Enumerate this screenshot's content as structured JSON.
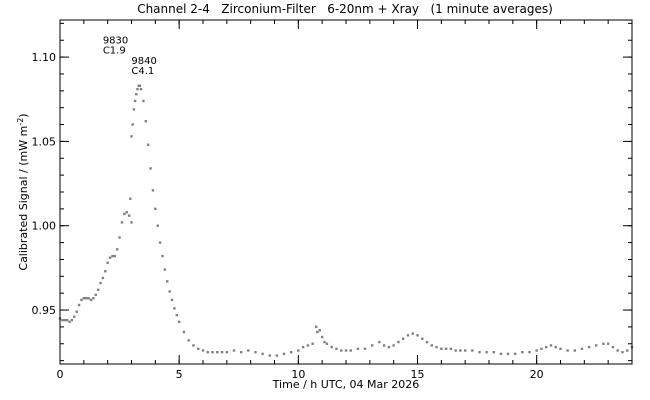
{
  "chart_data": {
    "type": "scatter",
    "title": "Channel 2-4   Zirconium-Filter   6-20nm + Xray   (1 minute averages)",
    "xlabel": "Time / h UTC, 04 Mar 2026",
    "ylabel": "Calibrated Signal / (mW m",
    "ylabel_sup": "-2",
    "ylabel_end": ")",
    "xlim": [
      0,
      24
    ],
    "ylim": [
      0.918,
      1.122
    ],
    "grid": false,
    "marker_color": "#808080",
    "x_ticks": [
      {
        "value": 0,
        "label": "0"
      },
      {
        "value": 5,
        "label": "5"
      },
      {
        "value": 10,
        "label": "10"
      },
      {
        "value": 15,
        "label": "15"
      },
      {
        "value": 20,
        "label": "20"
      }
    ],
    "x_minor_step": 1,
    "y_ticks": [
      {
        "value": 0.95,
        "label": "0.95"
      },
      {
        "value": 1.0,
        "label": "1.00"
      },
      {
        "value": 1.05,
        "label": "1.05"
      },
      {
        "value": 1.1,
        "label": "1.10"
      }
    ],
    "y_minor_step": 0.01,
    "annotations": [
      {
        "name": "flare-9830",
        "x": 2.3,
        "y": 1.108,
        "lines": [
          "9830",
          "C1.9"
        ]
      },
      {
        "name": "flare-9840",
        "x": 3.5,
        "y": 1.096,
        "lines": [
          "9840",
          "C4.1"
        ]
      }
    ],
    "series": [
      {
        "points": [
          [
            0.0,
            0.945
          ],
          [
            0.1,
            0.944
          ],
          [
            0.2,
            0.944
          ],
          [
            0.3,
            0.944
          ],
          [
            0.4,
            0.943
          ],
          [
            0.5,
            0.944
          ],
          [
            0.6,
            0.946
          ],
          [
            0.7,
            0.949
          ],
          [
            0.8,
            0.953
          ],
          [
            0.9,
            0.956
          ],
          [
            1.0,
            0.957
          ],
          [
            1.1,
            0.957
          ],
          [
            1.2,
            0.957
          ],
          [
            1.3,
            0.956
          ],
          [
            1.4,
            0.957
          ],
          [
            1.5,
            0.959
          ],
          [
            1.6,
            0.962
          ],
          [
            1.7,
            0.966
          ],
          [
            1.8,
            0.969
          ],
          [
            1.9,
            0.973
          ],
          [
            2.0,
            0.978
          ],
          [
            2.1,
            0.981
          ],
          [
            2.2,
            0.982
          ],
          [
            2.3,
            0.982
          ],
          [
            2.4,
            0.986
          ],
          [
            2.5,
            0.993
          ],
          [
            2.6,
            1.002
          ],
          [
            2.7,
            1.007
          ],
          [
            2.8,
            1.008
          ],
          [
            2.9,
            1.006
          ],
          [
            3.0,
            1.002
          ],
          [
            2.95,
            1.016
          ],
          [
            3.0,
            1.053
          ],
          [
            3.05,
            1.06
          ],
          [
            3.1,
            1.069
          ],
          [
            3.15,
            1.074
          ],
          [
            3.2,
            1.078
          ],
          [
            3.25,
            1.081
          ],
          [
            3.3,
            1.083
          ],
          [
            3.35,
            1.083
          ],
          [
            3.4,
            1.081
          ],
          [
            3.5,
            1.074
          ],
          [
            3.6,
            1.062
          ],
          [
            3.7,
            1.048
          ],
          [
            3.8,
            1.034
          ],
          [
            3.9,
            1.021
          ],
          [
            4.0,
            1.01
          ],
          [
            4.1,
            1.0
          ],
          [
            4.2,
            0.99
          ],
          [
            4.3,
            0.982
          ],
          [
            4.4,
            0.974
          ],
          [
            4.5,
            0.967
          ],
          [
            4.6,
            0.961
          ],
          [
            4.7,
            0.956
          ],
          [
            4.8,
            0.951
          ],
          [
            4.9,
            0.947
          ],
          [
            5.0,
            0.943
          ],
          [
            5.2,
            0.937
          ],
          [
            5.4,
            0.932
          ],
          [
            5.6,
            0.929
          ],
          [
            5.8,
            0.927
          ],
          [
            6.0,
            0.926
          ],
          [
            6.2,
            0.925
          ],
          [
            6.4,
            0.925
          ],
          [
            6.6,
            0.925
          ],
          [
            6.8,
            0.925
          ],
          [
            7.0,
            0.925
          ],
          [
            7.3,
            0.926
          ],
          [
            7.6,
            0.925
          ],
          [
            7.9,
            0.926
          ],
          [
            8.2,
            0.925
          ],
          [
            8.5,
            0.924
          ],
          [
            8.8,
            0.923
          ],
          [
            9.1,
            0.923
          ],
          [
            9.4,
            0.924
          ],
          [
            9.7,
            0.925
          ],
          [
            10.0,
            0.926
          ],
          [
            10.2,
            0.928
          ],
          [
            10.4,
            0.929
          ],
          [
            10.6,
            0.93
          ],
          [
            10.75,
            0.94
          ],
          [
            10.8,
            0.937
          ],
          [
            10.9,
            0.938
          ],
          [
            11.0,
            0.934
          ],
          [
            11.1,
            0.931
          ],
          [
            11.2,
            0.93
          ],
          [
            11.4,
            0.928
          ],
          [
            11.6,
            0.927
          ],
          [
            11.8,
            0.926
          ],
          [
            12.0,
            0.926
          ],
          [
            12.2,
            0.926
          ],
          [
            12.5,
            0.927
          ],
          [
            12.8,
            0.927
          ],
          [
            13.1,
            0.929
          ],
          [
            13.4,
            0.931
          ],
          [
            13.6,
            0.929
          ],
          [
            13.8,
            0.928
          ],
          [
            14.0,
            0.929
          ],
          [
            14.2,
            0.931
          ],
          [
            14.4,
            0.933
          ],
          [
            14.6,
            0.935
          ],
          [
            14.8,
            0.936
          ],
          [
            15.0,
            0.935
          ],
          [
            15.2,
            0.933
          ],
          [
            15.4,
            0.931
          ],
          [
            15.6,
            0.929
          ],
          [
            15.8,
            0.928
          ],
          [
            16.0,
            0.927
          ],
          [
            16.2,
            0.927
          ],
          [
            16.4,
            0.927
          ],
          [
            16.6,
            0.926
          ],
          [
            16.8,
            0.926
          ],
          [
            17.0,
            0.926
          ],
          [
            17.3,
            0.926
          ],
          [
            17.6,
            0.925
          ],
          [
            17.9,
            0.925
          ],
          [
            18.2,
            0.925
          ],
          [
            18.5,
            0.924
          ],
          [
            18.8,
            0.924
          ],
          [
            19.1,
            0.924
          ],
          [
            19.4,
            0.925
          ],
          [
            19.7,
            0.925
          ],
          [
            20.0,
            0.926
          ],
          [
            20.2,
            0.927
          ],
          [
            20.4,
            0.928
          ],
          [
            20.6,
            0.929
          ],
          [
            20.8,
            0.928
          ],
          [
            21.0,
            0.927
          ],
          [
            21.3,
            0.926
          ],
          [
            21.6,
            0.926
          ],
          [
            21.9,
            0.927
          ],
          [
            22.2,
            0.928
          ],
          [
            22.5,
            0.929
          ],
          [
            22.8,
            0.93
          ],
          [
            23.0,
            0.93
          ],
          [
            23.2,
            0.928
          ],
          [
            23.4,
            0.926
          ],
          [
            23.6,
            0.925
          ],
          [
            23.8,
            0.926
          ],
          [
            24.0,
            0.928
          ]
        ]
      }
    ]
  }
}
